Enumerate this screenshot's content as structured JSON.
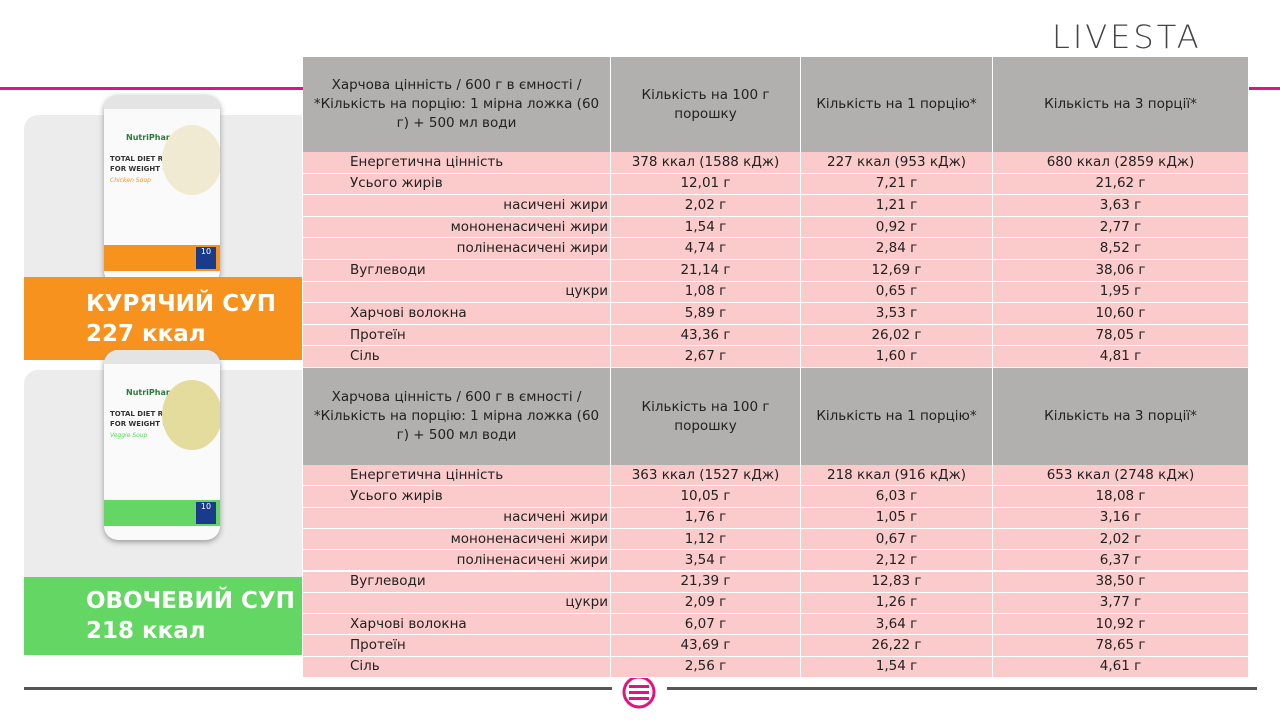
{
  "brand": "LIVESTA",
  "header": [
    "Харчова цінність / 600 г в ємності / *Кількість на порцію: 1 мірна ложка (60 г) + 500 мл води",
    "Кількість на 100 г порошку",
    "Кількість на 1 порцію*",
    "Кількість на 3 порції*"
  ],
  "products": [
    {
      "name": "КУРЯЧИЙ СУП",
      "kcal": "227 ккал",
      "jar": {
        "brand": "NutriPharma",
        "line1": "TOTAL DIET REPLACEMENT",
        "line2": "FOR WEIGHT CONTROL",
        "flavor": "Chicken Soup",
        "count": "10"
      },
      "rows": [
        [
          "Енергетична цінність",
          "378 ккал (1588 кДж)",
          "227 ккал (953 кДж)",
          "680 ккал (2859 кДж)"
        ],
        [
          "Усього жирів",
          "12,01 г",
          "7,21 г",
          "21,62 г"
        ],
        [
          "насичені жири",
          "2,02 г",
          "1,21 г",
          "3,63 г"
        ],
        [
          "мононенасичені жири",
          "1,54 г",
          "0,92 г",
          "2,77 г"
        ],
        [
          "поліненасичені жири",
          "4,74 г",
          "2,84 г",
          "8,52 г"
        ],
        [
          "Вуглеводи",
          "21,14 г",
          "12,69 г",
          "38,06 г"
        ],
        [
          "цукри",
          "1,08 г",
          "0,65 г",
          "1,95 г"
        ],
        [
          "Харчові волокна",
          "5,89 г",
          "3,53 г",
          "10,60 г"
        ],
        [
          "Протеїн",
          "43,36 г",
          "26,02 г",
          "78,05 г"
        ],
        [
          "Сіль",
          "2,67 г",
          "1,60 г",
          "4,81 г"
        ]
      ]
    },
    {
      "name": "ОВОЧЕВИЙ СУП",
      "kcal": "218 ккал",
      "jar": {
        "brand": "NutriPharma",
        "line1": "TOTAL DIET REPLACEMENT",
        "line2": "FOR WEIGHT CONTROL",
        "flavor": "Veggie Soup",
        "count": "10"
      },
      "rows": [
        [
          "Енергетична цінність",
          "363 ккал (1527 кДж)",
          "218 ккал (916 кДж)",
          "653 ккал (2748 кДж)"
        ],
        [
          "Усього жирів",
          "10,05 г",
          "6,03 г",
          "18,08 г"
        ],
        [
          "насичені жири",
          "1,76 г",
          "1,05 г",
          "3,16 г"
        ],
        [
          "мононенасичені жири",
          "1,12 г",
          "0,67 г",
          "2,02 г"
        ],
        [
          "поліненасичені жири",
          "3,54 г",
          "2,12 г",
          "6,37 г"
        ],
        [
          "Вуглеводи",
          "21,39 г",
          "12,83 г",
          "38,50 г"
        ],
        [
          "цукри",
          "2,09 г",
          "1,26 г",
          "3,77 г"
        ],
        [
          "Харчові волокна",
          "6,07 г",
          "3,64 г",
          "10,92 г"
        ],
        [
          "Протеїн",
          "43,69 г",
          "26,22 г",
          "78,65 г"
        ],
        [
          "Сіль",
          "2,56 г",
          "1,54 г",
          "4,61 г"
        ]
      ]
    }
  ]
}
